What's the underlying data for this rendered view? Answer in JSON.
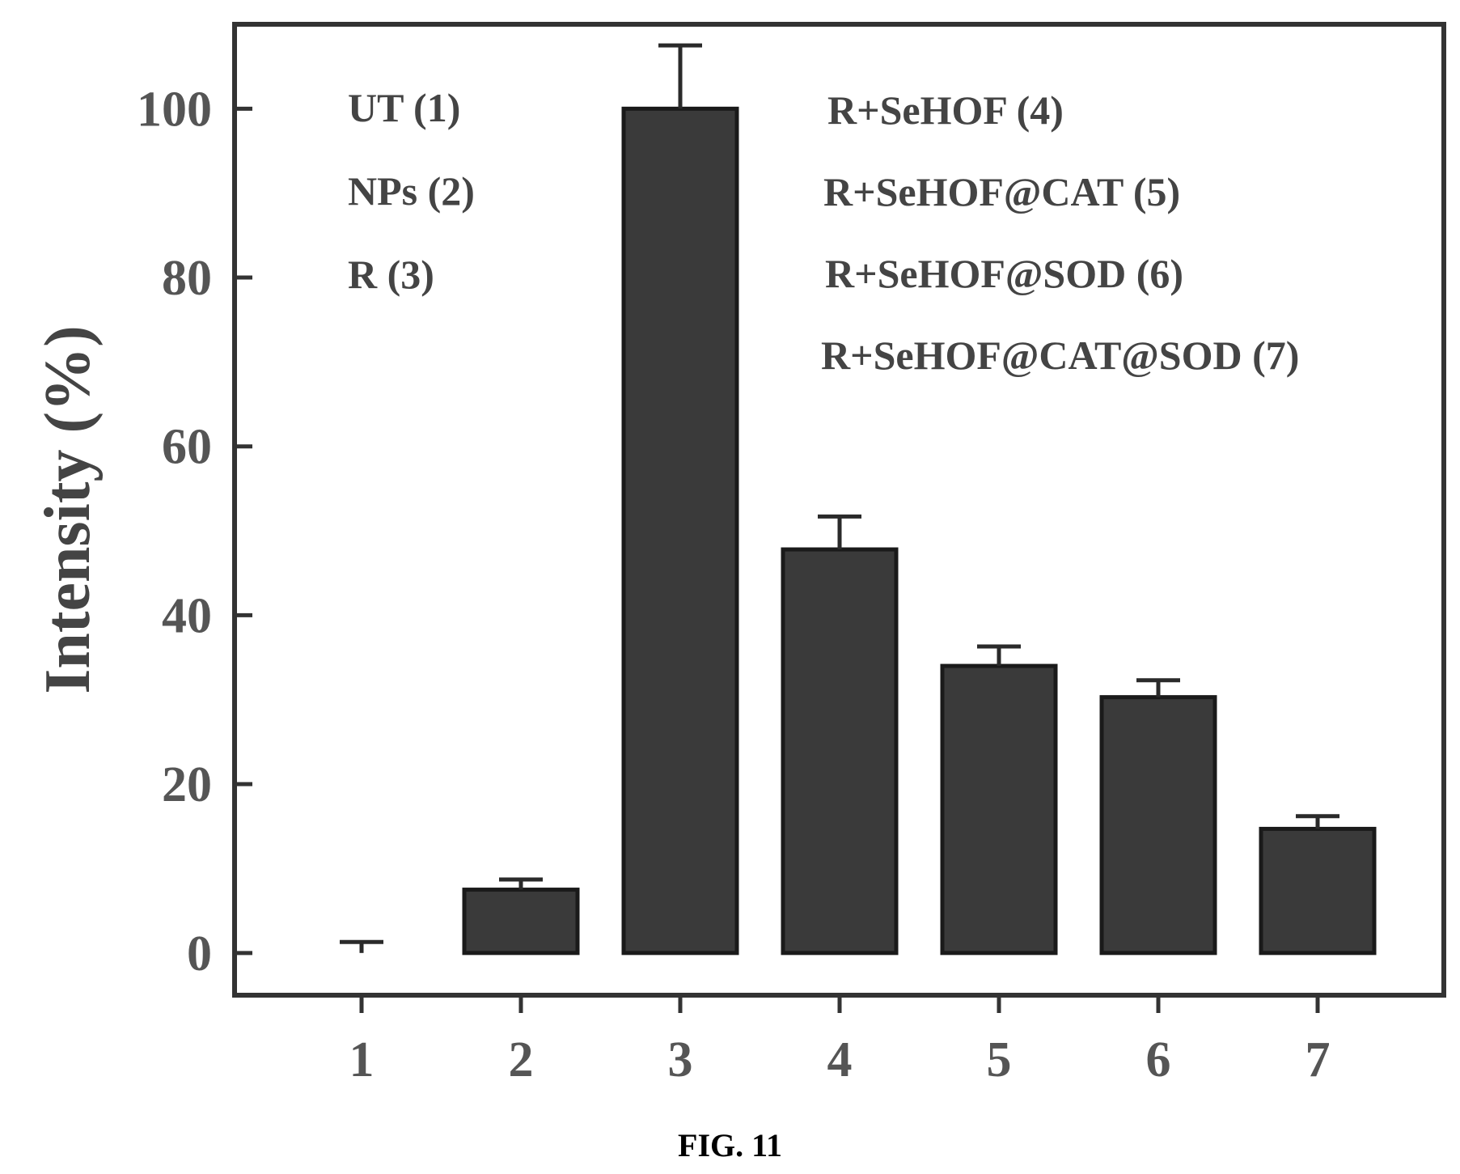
{
  "chart_data": {
    "type": "bar",
    "categories": [
      "1",
      "2",
      "3",
      "4",
      "5",
      "6",
      "7"
    ],
    "values": [
      0,
      7.5,
      100,
      47.8,
      34,
      30.3,
      14.7
    ],
    "errors": [
      1.3,
      1.2,
      7.5,
      3.9,
      2.3,
      2,
      1.5
    ],
    "title": "",
    "xlabel": "",
    "ylabel": "Intensity (%)",
    "ylim": [
      -5,
      110
    ],
    "yticks": [
      0,
      20,
      40,
      60,
      80,
      100
    ],
    "grid": false,
    "bar_color": "#3a3a3a",
    "legend_left": [
      "UT (1)",
      "NPs (2)",
      "R (3)"
    ],
    "legend_right": [
      "R+SeHOF (4)",
      "R+SeHOF@CAT (5)",
      "R+SeHOF@SOD (6)",
      "R+SeHOF@CAT@SOD (7)"
    ]
  },
  "caption": "FIG. 11"
}
